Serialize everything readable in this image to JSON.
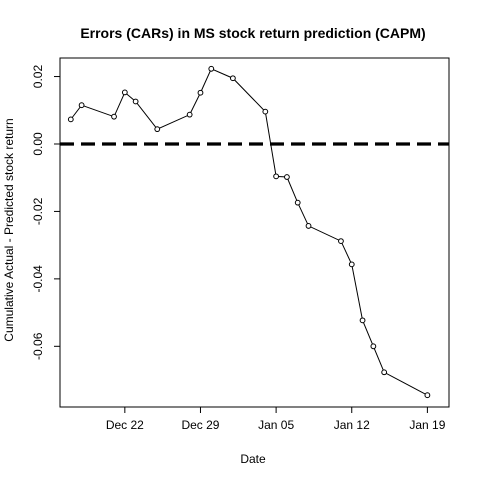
{
  "chart_data": {
    "type": "line",
    "title": "Errors (CARs) in MS stock return prediction (CAPM)",
    "xlabel": "Date",
    "ylabel": "Cumulative Actual - Predicted stock return",
    "x_ticks": [
      {
        "date": "2015-12-22",
        "label": "Dec 22"
      },
      {
        "date": "2015-12-29",
        "label": "Dec 29"
      },
      {
        "date": "2016-01-05",
        "label": "Jan 05"
      },
      {
        "date": "2016-01-12",
        "label": "Jan 12"
      },
      {
        "date": "2016-01-19",
        "label": "Jan 19"
      }
    ],
    "y_ticks": [
      {
        "value": 0.02,
        "label": "0.02"
      },
      {
        "value": 0.0,
        "label": "0.00"
      },
      {
        "value": -0.02,
        "label": "-0.02"
      },
      {
        "value": -0.04,
        "label": "-0.04"
      },
      {
        "value": -0.06,
        "label": "-0.06"
      }
    ],
    "xlim": [
      "2015-12-16",
      "2016-01-21"
    ],
    "ylim": [
      -0.078,
      0.0255
    ],
    "reference_line": {
      "y": 0.0,
      "style": "dashed"
    },
    "grid": false,
    "series": [
      {
        "points": [
          {
            "x": "2015-12-17",
            "y": 0.0073
          },
          {
            "x": "2015-12-18",
            "y": 0.0115
          },
          {
            "x": "2015-12-21",
            "y": 0.0081
          },
          {
            "x": "2015-12-22",
            "y": 0.0153
          },
          {
            "x": "2015-12-23",
            "y": 0.0126
          },
          {
            "x": "2015-12-25",
            "y": 0.0044
          },
          {
            "x": "2015-12-28",
            "y": 0.0087
          },
          {
            "x": "2015-12-29",
            "y": 0.0152
          },
          {
            "x": "2015-12-30",
            "y": 0.0223
          },
          {
            "x": "2016-01-01",
            "y": 0.0195
          },
          {
            "x": "2016-01-04",
            "y": 0.0096
          },
          {
            "x": "2016-01-05",
            "y": -0.0096
          },
          {
            "x": "2016-01-06",
            "y": -0.0098
          },
          {
            "x": "2016-01-07",
            "y": -0.0174
          },
          {
            "x": "2016-01-08",
            "y": -0.0243
          },
          {
            "x": "2016-01-11",
            "y": -0.0288
          },
          {
            "x": "2016-01-12",
            "y": -0.0357
          },
          {
            "x": "2016-01-13",
            "y": -0.0523
          },
          {
            "x": "2016-01-14",
            "y": -0.06
          },
          {
            "x": "2016-01-15",
            "y": -0.0677
          },
          {
            "x": "2016-01-19",
            "y": -0.0745
          }
        ]
      }
    ]
  }
}
